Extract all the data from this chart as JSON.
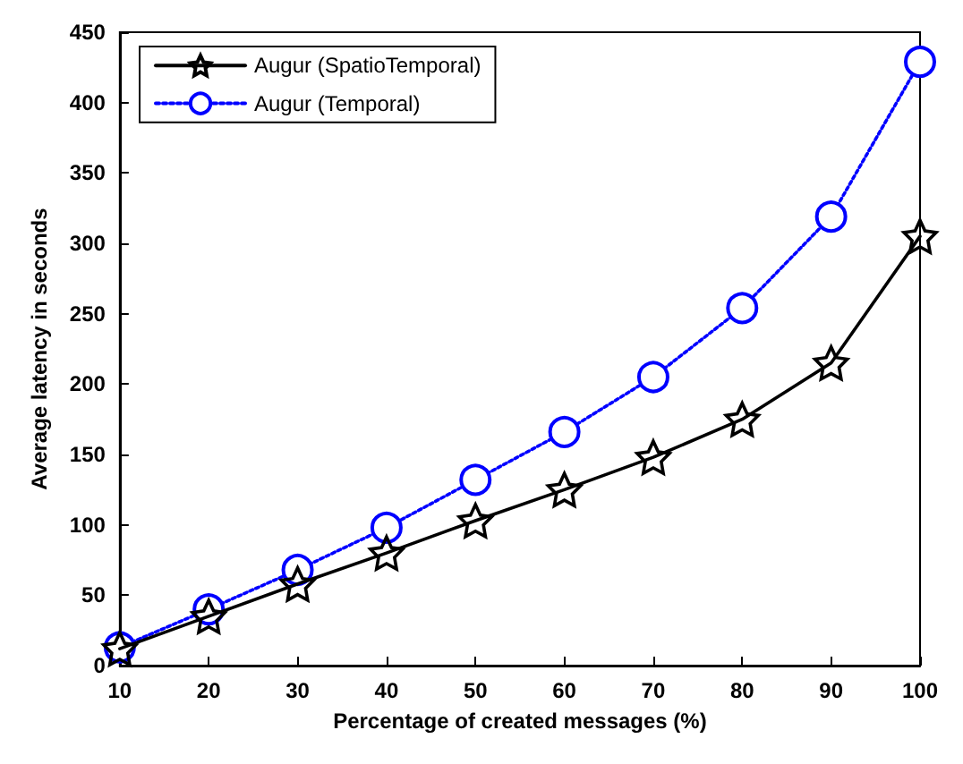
{
  "chart_data": {
    "type": "line",
    "xlabel": "Percentage of created messages (%)",
    "ylabel": "Average latency in seconds",
    "x": [
      10,
      20,
      30,
      40,
      50,
      60,
      70,
      80,
      90,
      100
    ],
    "series": [
      {
        "name": "Augur (SpatioTemporal)",
        "color": "#000000",
        "marker": "star",
        "line_style": "solid",
        "values": [
          12,
          35,
          58,
          80,
          103,
          125,
          148,
          175,
          215,
          305
        ]
      },
      {
        "name": "Augur (Temporal)",
        "color": "#0000ff",
        "marker": "circle",
        "line_style": "dotted",
        "values": [
          13,
          40,
          68,
          98,
          132,
          166,
          205,
          254,
          319,
          429
        ]
      }
    ],
    "xlim": [
      10,
      100
    ],
    "xticks": [
      10,
      20,
      30,
      40,
      50,
      60,
      70,
      80,
      90,
      100
    ],
    "ylim": [
      0,
      450
    ],
    "yticks": [
      0,
      50,
      100,
      150,
      200,
      250,
      300,
      350,
      400,
      450
    ],
    "grid": false,
    "legend": "top left"
  }
}
